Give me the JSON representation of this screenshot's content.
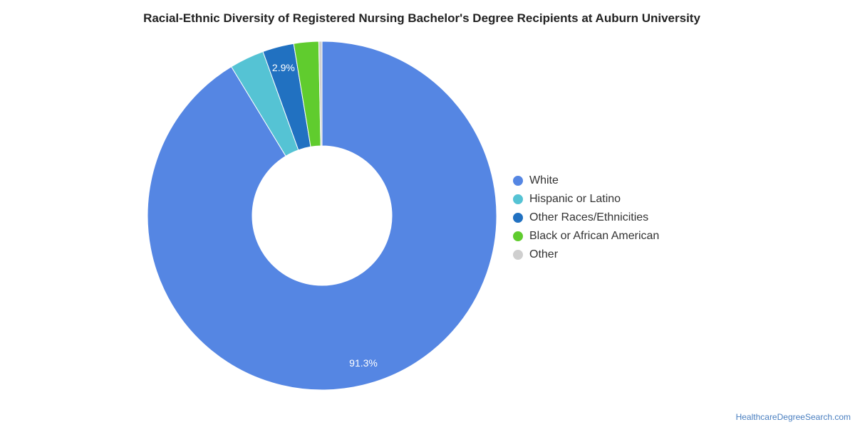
{
  "chart_data": {
    "type": "pie",
    "style": "donut",
    "title": "Racial-Ethnic Diversity of Registered Nursing Bachelor's Degree Recipients at Auburn University",
    "legend_position": "right",
    "slices": [
      {
        "name": "White",
        "value": 91.3,
        "label": "91.3%",
        "color": "#5586e3"
      },
      {
        "name": "Hispanic or Latino",
        "value": 3.2,
        "label": "",
        "color": "#55c3d4"
      },
      {
        "name": "Other Races/Ethnicities",
        "value": 2.9,
        "label": "2.9%",
        "color": "#2171c1"
      },
      {
        "name": "Black or African American",
        "value": 2.3,
        "label": "",
        "color": "#60cc2e"
      },
      {
        "name": "Other",
        "value": 0.3,
        "label": "",
        "color": "#cfcfcf"
      }
    ]
  },
  "footer": {
    "source": "HealthcareDegreeSearch.com"
  }
}
